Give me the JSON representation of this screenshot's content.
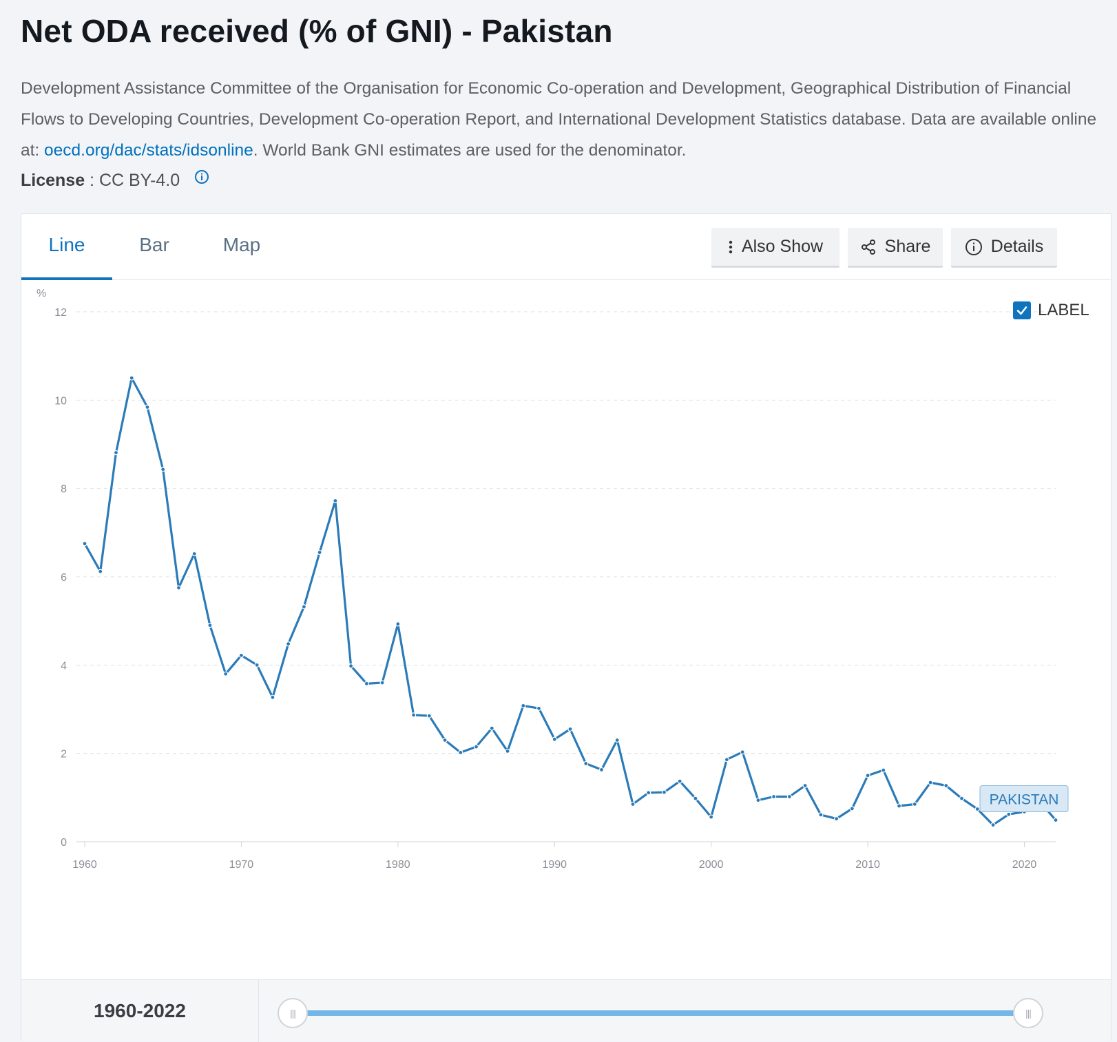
{
  "page": {
    "title": "Net ODA received (% of GNI) - Pakistan",
    "source_text_1": "Development Assistance Committee of the Organisation for Economic Co-operation and Development, Geographical Distribution of Financial Flows to Developing Countries, Development Co-operation Report, and International Development Statistics database. Data are available online at: ",
    "source_link": "oecd.org/dac/stats/idsonline",
    "source_text_2": ". World Bank GNI estimates are used for the denominator.",
    "license_label": "License",
    "license_value": " : CC BY-4.0"
  },
  "tabs": [
    {
      "label": "Line",
      "active": true
    },
    {
      "label": "Bar",
      "active": false
    },
    {
      "label": "Map",
      "active": false
    }
  ],
  "toolbar": {
    "also_show": "Also Show",
    "share": "Share",
    "details": "Details"
  },
  "label_toggle": {
    "label": "LABEL",
    "checked": true
  },
  "range": {
    "start": "1960",
    "sep": " - ",
    "end": "2022"
  },
  "colors": {
    "series": "#2b7bb9",
    "accent": "#0f73be",
    "slider": "#74b6e8"
  },
  "chart_data": {
    "type": "line",
    "ylabel": "%",
    "ylim": [
      0,
      12
    ],
    "xlim": [
      1960,
      2022
    ],
    "yticks": [
      0,
      2,
      4,
      6,
      8,
      10,
      12
    ],
    "xticks": [
      1960,
      1970,
      1980,
      1990,
      2000,
      2010,
      2020
    ],
    "grid": true,
    "series": [
      {
        "name": "PAKISTAN",
        "x": [
          1960,
          1961,
          1962,
          1963,
          1964,
          1965,
          1966,
          1967,
          1968,
          1969,
          1970,
          1971,
          1972,
          1973,
          1974,
          1975,
          1976,
          1977,
          1978,
          1979,
          1980,
          1981,
          1982,
          1983,
          1984,
          1985,
          1986,
          1987,
          1988,
          1989,
          1990,
          1991,
          1992,
          1993,
          1994,
          1995,
          1996,
          1997,
          1998,
          1999,
          2000,
          2001,
          2002,
          2003,
          2004,
          2005,
          2006,
          2007,
          2008,
          2009,
          2010,
          2011,
          2012,
          2013,
          2014,
          2015,
          2016,
          2017,
          2018,
          2019,
          2020,
          2021,
          2022
        ],
        "values": [
          6.75,
          6.12,
          8.81,
          10.5,
          9.84,
          8.43,
          5.75,
          6.52,
          4.9,
          3.8,
          4.22,
          4.0,
          3.27,
          4.48,
          5.32,
          6.55,
          7.72,
          3.98,
          3.58,
          3.6,
          4.93,
          2.87,
          2.85,
          2.3,
          2.02,
          2.15,
          2.57,
          2.05,
          3.08,
          3.02,
          2.32,
          2.55,
          1.77,
          1.63,
          2.3,
          0.85,
          1.11,
          1.12,
          1.37,
          0.98,
          0.56,
          1.86,
          2.03,
          0.94,
          1.02,
          1.02,
          1.27,
          0.61,
          0.52,
          0.75,
          1.5,
          1.62,
          0.81,
          0.85,
          1.34,
          1.27,
          0.98,
          0.74,
          0.38,
          0.62,
          0.68,
          0.9,
          0.49
        ]
      }
    ]
  }
}
